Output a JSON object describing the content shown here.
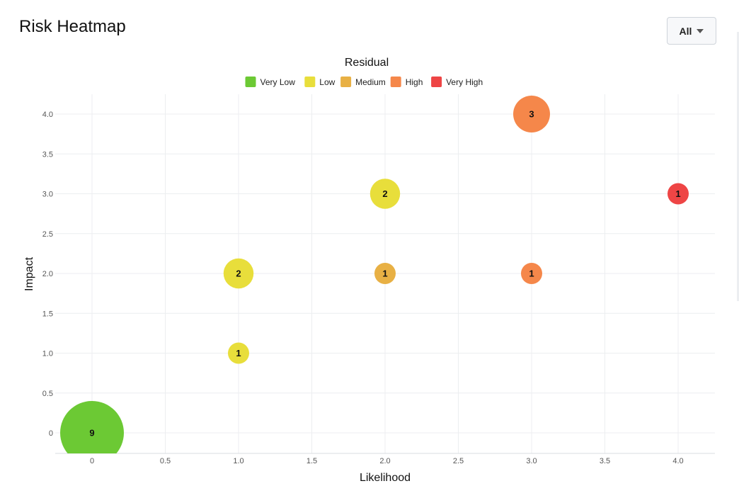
{
  "header": {
    "title": "Risk Heatmap",
    "filter_label": "All"
  },
  "chart_data": {
    "type": "scatter",
    "title": "",
    "legend_title": "Residual",
    "legend_position": "top-center",
    "xlabel": "Likelihood",
    "ylabel": "Impact",
    "xlim": [
      -0.25,
      4.25
    ],
    "ylim": [
      -0.25,
      4.25
    ],
    "x_ticks": [
      "0",
      "0.5",
      "1.0",
      "1.5",
      "2.0",
      "2.5",
      "3.0",
      "3.5",
      "4.0"
    ],
    "y_ticks": [
      "0",
      "0.5",
      "1.0",
      "1.5",
      "2.0",
      "2.5",
      "3.0",
      "3.5",
      "4.0"
    ],
    "grid": true,
    "categories": [
      {
        "name": "Very Low",
        "color": "#6cc934"
      },
      {
        "name": "Low",
        "color": "#e8de3b"
      },
      {
        "name": "Medium",
        "color": "#e8b044"
      },
      {
        "name": "High",
        "color": "#f5874a"
      },
      {
        "name": "Very High",
        "color": "#ee4545"
      }
    ],
    "points": [
      {
        "x": 0,
        "y": 0,
        "count": 9,
        "level": "Very Low"
      },
      {
        "x": 1,
        "y": 1,
        "count": 1,
        "level": "Low"
      },
      {
        "x": 1,
        "y": 2,
        "count": 2,
        "level": "Low"
      },
      {
        "x": 2,
        "y": 2,
        "count": 1,
        "level": "Medium"
      },
      {
        "x": 2,
        "y": 3,
        "count": 2,
        "level": "Low"
      },
      {
        "x": 3,
        "y": 2,
        "count": 1,
        "level": "High"
      },
      {
        "x": 3,
        "y": 4,
        "count": 3,
        "level": "High"
      },
      {
        "x": 4,
        "y": 3,
        "count": 1,
        "level": "Very High"
      }
    ]
  }
}
